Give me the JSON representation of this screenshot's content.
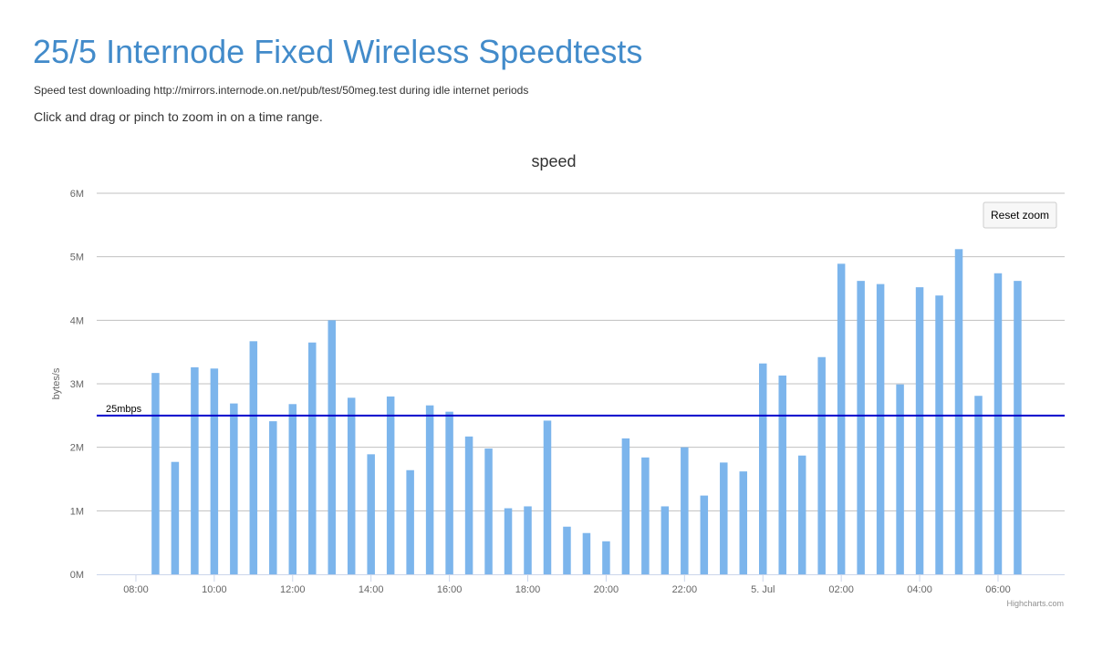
{
  "page": {
    "title": "25/5 Internode Fixed Wireless Speedtests",
    "subtitle": "Speed test downloading http://mirrors.internode.on.net/pub/test/50meg.test during idle internet periods",
    "instructions": "Click and drag or pinch to zoom in on a time range."
  },
  "chart_data": {
    "type": "bar",
    "title": "speed",
    "xlabel": "",
    "ylabel": "bytes/s",
    "ylim": [
      0,
      6000000
    ],
    "y_ticks": [
      "0M",
      "1M",
      "2M",
      "3M",
      "4M",
      "5M",
      "6M"
    ],
    "x_ticks": [
      "08:00",
      "10:00",
      "12:00",
      "14:00",
      "16:00",
      "18:00",
      "20:00",
      "22:00",
      "5. Jul",
      "02:00",
      "04:00",
      "06:00"
    ],
    "x_ticks_hours": [
      8,
      10,
      12,
      14,
      16,
      18,
      20,
      22,
      24,
      26,
      28,
      30
    ],
    "xlim_hours": [
      7,
      31.7
    ],
    "x_hours": [
      8.5,
      9.0,
      9.5,
      10.0,
      10.5,
      11.0,
      11.5,
      12.0,
      12.5,
      13.0,
      13.5,
      14.0,
      14.5,
      15.0,
      15.5,
      16.0,
      16.5,
      17.0,
      17.5,
      18.0,
      18.5,
      19.0,
      19.5,
      20.0,
      20.5,
      21.0,
      21.5,
      22.0,
      22.5,
      23.0,
      23.5,
      24.0,
      24.5,
      25.0,
      25.5,
      26.0,
      26.5,
      27.0,
      27.5,
      28.0,
      28.5,
      29.0,
      29.5,
      30.0,
      30.5
    ],
    "values": [
      3170000,
      1770000,
      3260000,
      3240000,
      2690000,
      3670000,
      2410000,
      2680000,
      3650000,
      4000000,
      2780000,
      1890000,
      2800000,
      1640000,
      2660000,
      2560000,
      2170000,
      1980000,
      1040000,
      1070000,
      2420000,
      750000,
      650000,
      520000,
      2140000,
      1840000,
      1070000,
      2000000,
      1240000,
      1760000,
      1620000,
      3320000,
      3130000,
      1870000,
      3420000,
      4890000,
      4620000,
      4570000,
      2990000,
      4520000,
      4390000,
      5120000,
      2810000,
      4740000,
      4620000
    ],
    "plot_line": {
      "value": 2500000,
      "label": "25mbps",
      "color": "#0000cc"
    },
    "bar_color": "#7cb5ec",
    "grid": true,
    "reset_zoom_label": "Reset zoom",
    "credits": "Highcharts.com"
  }
}
